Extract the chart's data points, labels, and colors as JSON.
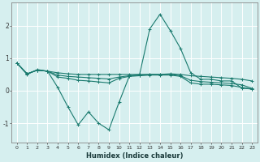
{
  "xlabel": "Humidex (Indice chaleur)",
  "ylabel": "",
  "background_color": "#d6efef",
  "grid_color": "#ffffff",
  "line_color": "#1a7a6e",
  "xlim": [
    -0.5,
    23.5
  ],
  "ylim": [
    -1.6,
    2.7
  ],
  "yticks": [
    -1,
    0,
    1,
    2
  ],
  "xticks": [
    0,
    1,
    2,
    3,
    4,
    5,
    6,
    7,
    8,
    9,
    10,
    11,
    12,
    13,
    14,
    15,
    16,
    17,
    18,
    19,
    20,
    21,
    22,
    23
  ],
  "series": [
    {
      "x": [
        0,
        1,
        2,
        3,
        4,
        5,
        6,
        7,
        8,
        9,
        10,
        11,
        12,
        13,
        14,
        15,
        16,
        17,
        18,
        19,
        20,
        21,
        22,
        23
      ],
      "y": [
        0.85,
        0.5,
        0.65,
        0.6,
        0.1,
        -0.5,
        -1.05,
        -0.65,
        -1.0,
        -1.2,
        -0.35,
        0.45,
        0.5,
        1.9,
        2.35,
        1.85,
        1.3,
        0.55,
        0.35,
        0.35,
        0.3,
        0.3,
        0.08,
        0.05
      ]
    },
    {
      "x": [
        0,
        1,
        2,
        3,
        4,
        5,
        6,
        7,
        8,
        9,
        10,
        11,
        12,
        13,
        14,
        15,
        16,
        17,
        18,
        19,
        20,
        21,
        22,
        23
      ],
      "y": [
        0.85,
        0.52,
        0.63,
        0.6,
        0.55,
        0.52,
        0.5,
        0.5,
        0.5,
        0.5,
        0.5,
        0.5,
        0.5,
        0.5,
        0.5,
        0.52,
        0.5,
        0.46,
        0.44,
        0.42,
        0.4,
        0.38,
        0.35,
        0.3
      ]
    },
    {
      "x": [
        0,
        1,
        2,
        3,
        4,
        5,
        6,
        7,
        8,
        9,
        10,
        11,
        12,
        13,
        14,
        15,
        16,
        17,
        18,
        19,
        20,
        21,
        22,
        23
      ],
      "y": [
        0.85,
        0.52,
        0.63,
        0.6,
        0.48,
        0.44,
        0.42,
        0.4,
        0.38,
        0.36,
        0.42,
        0.46,
        0.48,
        0.5,
        0.5,
        0.5,
        0.46,
        0.32,
        0.28,
        0.26,
        0.24,
        0.22,
        0.18,
        0.07
      ]
    },
    {
      "x": [
        0,
        1,
        2,
        3,
        4,
        5,
        6,
        7,
        8,
        9,
        10,
        11,
        12,
        13,
        14,
        15,
        16,
        17,
        18,
        19,
        20,
        21,
        22,
        23
      ],
      "y": [
        0.85,
        0.52,
        0.63,
        0.6,
        0.42,
        0.38,
        0.32,
        0.3,
        0.27,
        0.24,
        0.38,
        0.44,
        0.46,
        0.48,
        0.48,
        0.48,
        0.44,
        0.24,
        0.2,
        0.2,
        0.18,
        0.16,
        0.1,
        0.05
      ]
    }
  ]
}
